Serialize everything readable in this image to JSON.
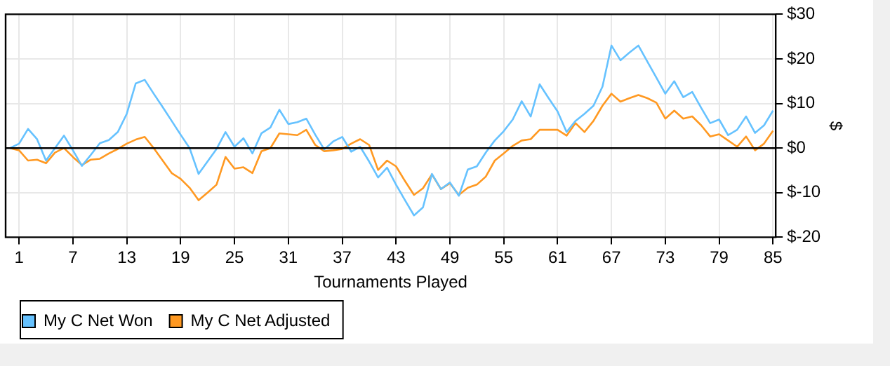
{
  "chart_data": {
    "type": "line",
    "xlabel": "Tournaments Played",
    "ylabel": "$",
    "x": [
      0,
      1,
      2,
      3,
      4,
      5,
      6,
      7,
      8,
      9,
      10,
      11,
      12,
      13,
      14,
      15,
      16,
      17,
      18,
      19,
      20,
      21,
      22,
      23,
      24,
      25,
      26,
      27,
      28,
      29,
      30,
      31,
      32,
      33,
      34,
      35,
      36,
      37,
      38,
      39,
      40,
      41,
      42,
      43,
      44,
      45,
      46,
      47,
      48,
      49,
      50,
      51,
      52,
      53,
      54,
      55,
      56,
      57,
      58,
      59,
      60,
      61,
      62,
      63,
      64,
      65,
      66,
      67,
      68,
      69,
      70,
      71,
      72,
      73,
      74,
      75,
      76,
      77,
      78,
      79,
      80,
      81,
      82,
      83,
      84,
      85
    ],
    "series": [
      {
        "name": "My C Net Won",
        "color": "#66c2ff",
        "values": [
          0,
          1,
          4.3,
          2,
          -2.8,
          0,
          2.8,
          -0.5,
          -4,
          -1.5,
          1.1,
          1.8,
          3.6,
          7.7,
          14.5,
          15.3,
          12.2,
          9.2,
          6.1,
          3,
          0,
          -5.8,
          -3,
          -0.2,
          3.6,
          0.3,
          2.2,
          -1.2,
          3.3,
          4.6,
          8.6,
          5.4,
          5.8,
          6.6,
          3,
          -0.3,
          1.5,
          2.5,
          -0.8,
          0.3,
          -3,
          -6.6,
          -4.4,
          -8.2,
          -11.7,
          -15.1,
          -13.3,
          -5.8,
          -9.2,
          -7.7,
          -10.7,
          -4.8,
          -4.1,
          -1,
          1.7,
          3.8,
          6.4,
          10.5,
          7.1,
          14.3,
          11.2,
          8.2,
          3.6,
          6.1,
          7.7,
          9.5,
          13.8,
          23,
          19.7,
          21.4,
          23,
          19.4,
          15.8,
          12.2,
          15,
          11.4,
          12.6,
          9,
          5.6,
          6.4,
          2.9,
          4.1,
          7.1,
          3.4,
          5.1,
          8.4
        ]
      },
      {
        "name": "My C Net Adjusted",
        "color": "#ff9922",
        "values": [
          0,
          -0.5,
          -2.8,
          -2.6,
          -3.4,
          -1,
          0,
          -2,
          -3.8,
          -2.6,
          -2.4,
          -1.2,
          -0.2,
          1,
          1.9,
          2.5,
          0,
          -2.8,
          -5.6,
          -6.9,
          -8.9,
          -11.7,
          -10,
          -8.2,
          -2,
          -4.6,
          -4.3,
          -5.6,
          -0.7,
          0,
          3.3,
          3.1,
          2.9,
          4.1,
          0.7,
          -0.7,
          -0.5,
          -0.2,
          1,
          2,
          0.7,
          -4.9,
          -2.8,
          -4.1,
          -7.4,
          -10.5,
          -9,
          -5.9,
          -9.2,
          -7.9,
          -10.5,
          -8.9,
          -8.2,
          -6.4,
          -2.8,
          -1.2,
          0.5,
          1.7,
          2,
          4.1,
          4.1,
          4.1,
          2.8,
          5.6,
          3.6,
          6.1,
          9.5,
          12.2,
          10.4,
          11.2,
          11.9,
          11.2,
          10.2,
          6.6,
          8.4,
          6.6,
          7.1,
          5.1,
          2.6,
          3.1,
          1.7,
          0.3,
          2.6,
          -0.5,
          1,
          3.9
        ]
      }
    ],
    "xlim": [
      -0.5,
      85.3
    ],
    "xticks": [
      1,
      7,
      13,
      19,
      25,
      31,
      37,
      43,
      49,
      55,
      61,
      67,
      73,
      79,
      85
    ],
    "ylim": [
      -20,
      30
    ],
    "yticks": [
      {
        "value": -20,
        "label": "$-20"
      },
      {
        "value": -10,
        "label": "$-10"
      },
      {
        "value": 0,
        "label": "$0"
      },
      {
        "value": 10,
        "label": "$10"
      },
      {
        "value": 20,
        "label": "$20"
      },
      {
        "value": 30,
        "label": "$30"
      }
    ],
    "ref_lines": [
      {
        "axis": "y",
        "value": 0,
        "color": "#000000"
      }
    ],
    "grid": true,
    "legend": "bottom left",
    "marker": "none",
    "line_style": "solid"
  }
}
